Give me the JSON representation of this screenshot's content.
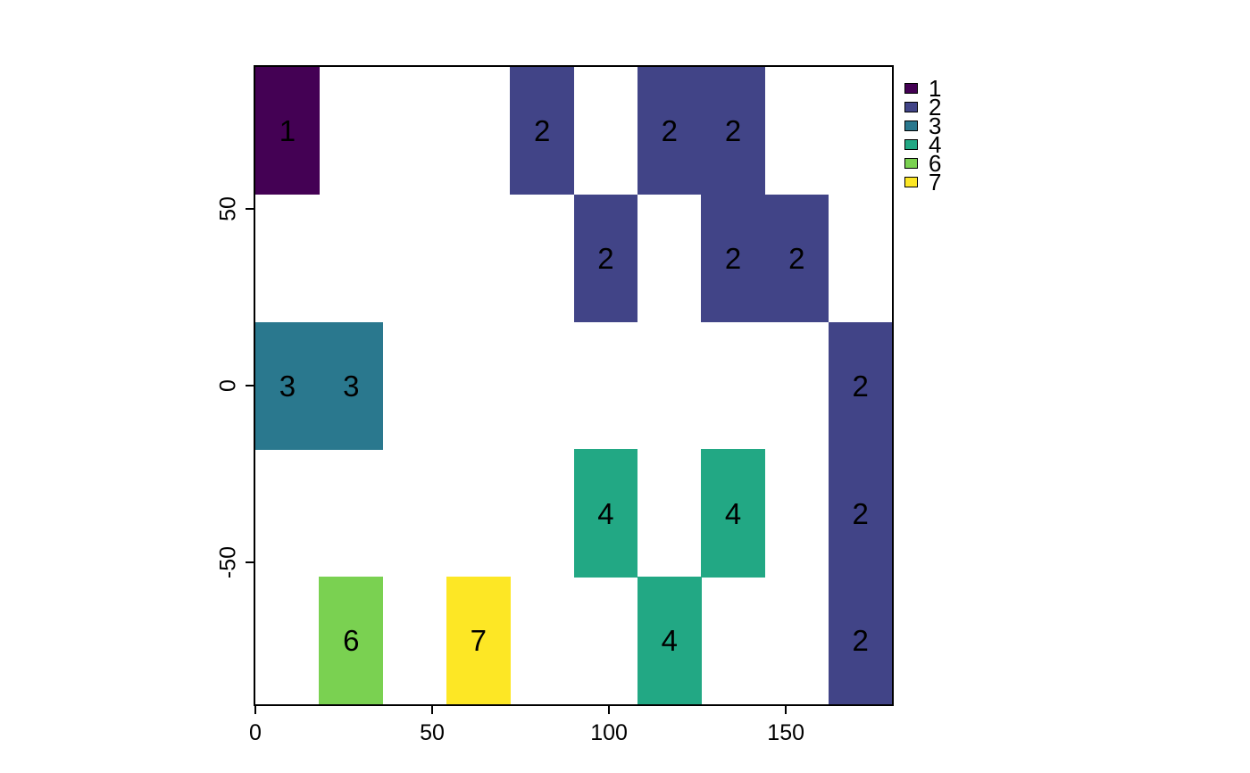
{
  "chart_data": {
    "type": "heatmap",
    "title": "",
    "xlabel": "",
    "ylabel": "",
    "x_range": [
      0,
      180
    ],
    "y_range": [
      -90,
      90
    ],
    "grid": {
      "cols": 10,
      "rows": 5
    },
    "cell_size": {
      "width": 18,
      "height": 36
    },
    "grid_lines": false,
    "background": "#ffffff",
    "x_ticks": [
      {
        "value": 0,
        "label": "0"
      },
      {
        "value": 50,
        "label": "50"
      },
      {
        "value": 100,
        "label": "100"
      },
      {
        "value": 150,
        "label": "150"
      }
    ],
    "y_ticks": [
      {
        "value": 50,
        "label": "50"
      },
      {
        "value": 0,
        "label": "0"
      },
      {
        "value": -50,
        "label": "-50"
      }
    ],
    "categories": [
      {
        "label": "1",
        "color": "#440154"
      },
      {
        "label": "2",
        "color": "#414487"
      },
      {
        "label": "3",
        "color": "#2a788e"
      },
      {
        "label": "4",
        "color": "#22a884"
      },
      {
        "label": "6",
        "color": "#7ad151"
      },
      {
        "label": "7",
        "color": "#fde725"
      }
    ],
    "legend_position": "upper-right-outside",
    "cells": [
      {
        "col": 0,
        "row": 0,
        "x0": 0,
        "y0": 54,
        "value": "1"
      },
      {
        "col": 4,
        "row": 0,
        "x0": 72,
        "y0": 54,
        "value": "2"
      },
      {
        "col": 6,
        "row": 0,
        "x0": 108,
        "y0": 54,
        "value": "2"
      },
      {
        "col": 7,
        "row": 0,
        "x0": 126,
        "y0": 54,
        "value": "2"
      },
      {
        "col": 5,
        "row": 1,
        "x0": 90,
        "y0": 18,
        "value": "2"
      },
      {
        "col": 7,
        "row": 1,
        "x0": 126,
        "y0": 18,
        "value": "2"
      },
      {
        "col": 8,
        "row": 1,
        "x0": 144,
        "y0": 18,
        "value": "2"
      },
      {
        "col": 0,
        "row": 2,
        "x0": 0,
        "y0": -18,
        "value": "3"
      },
      {
        "col": 1,
        "row": 2,
        "x0": 18,
        "y0": -18,
        "value": "3"
      },
      {
        "col": 9,
        "row": 2,
        "x0": 162,
        "y0": -18,
        "value": "2"
      },
      {
        "col": 5,
        "row": 3,
        "x0": 90,
        "y0": -54,
        "value": "4"
      },
      {
        "col": 7,
        "row": 3,
        "x0": 126,
        "y0": -54,
        "value": "4"
      },
      {
        "col": 9,
        "row": 3,
        "x0": 162,
        "y0": -54,
        "value": "2"
      },
      {
        "col": 1,
        "row": 4,
        "x0": 18,
        "y0": -90,
        "value": "6"
      },
      {
        "col": 3,
        "row": 4,
        "x0": 54,
        "y0": -90,
        "value": "7"
      },
      {
        "col": 6,
        "row": 4,
        "x0": 108,
        "y0": -90,
        "value": "4"
      },
      {
        "col": 9,
        "row": 4,
        "x0": 162,
        "y0": -90,
        "value": "2"
      }
    ]
  }
}
